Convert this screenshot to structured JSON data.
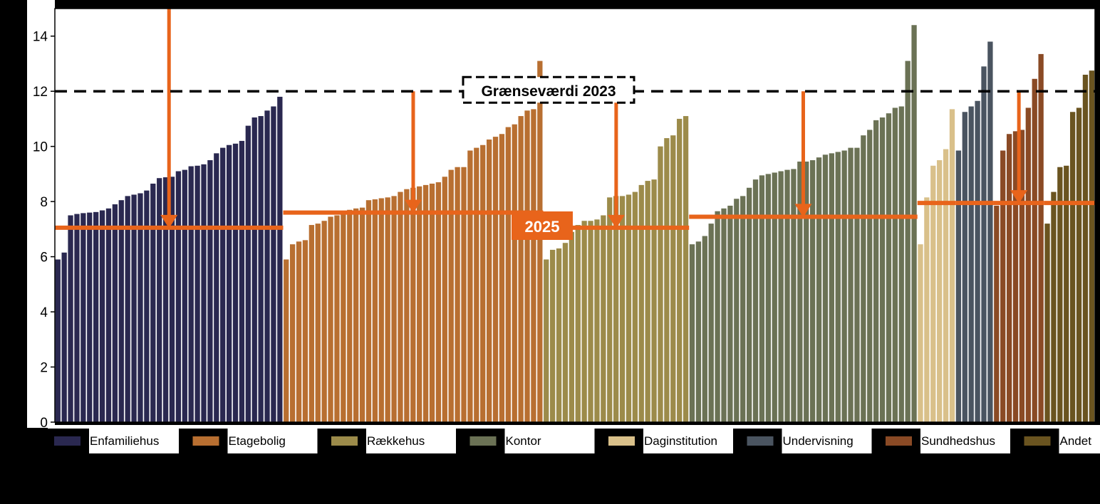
{
  "chart_data": {
    "type": "bar",
    "title": "",
    "xlabel": "",
    "ylabel": "",
    "ylim": [
      0,
      15
    ],
    "yticks": [
      0,
      2,
      4,
      6,
      8,
      10,
      12,
      14
    ],
    "grid": false,
    "legend_position": "bottom",
    "reference_line": {
      "label": "Grænseværdi 2023",
      "value": 12,
      "style": "dashed",
      "color": "#000000"
    },
    "target_label": "2025",
    "accent_color": "#E8641B",
    "series": [
      {
        "name": "Enfamiliehus",
        "color": "#2A2850",
        "target": 7.05,
        "values": [
          5.9,
          6.15,
          7.5,
          7.55,
          7.58,
          7.6,
          7.62,
          7.68,
          7.75,
          7.9,
          8.05,
          8.2,
          8.25,
          8.3,
          8.4,
          8.65,
          8.85,
          8.88,
          8.9,
          9.1,
          9.15,
          9.28,
          9.3,
          9.35,
          9.5,
          9.75,
          9.95,
          10.05,
          10.1,
          10.2,
          10.75,
          11.05,
          11.1,
          11.3,
          11.45,
          11.8
        ]
      },
      {
        "name": "Etagebolig",
        "color": "#B86F31",
        "target": 7.6,
        "values": [
          5.9,
          6.45,
          6.55,
          6.6,
          7.15,
          7.2,
          7.3,
          7.45,
          7.5,
          7.55,
          7.7,
          7.75,
          7.78,
          8.05,
          8.08,
          8.12,
          8.15,
          8.2,
          8.35,
          8.45,
          8.5,
          8.55,
          8.6,
          8.65,
          8.7,
          8.9,
          9.15,
          9.25,
          9.25,
          9.85,
          9.95,
          10.05,
          10.25,
          10.35,
          10.45,
          10.7,
          10.8,
          11.1,
          11.3,
          11.35,
          13.1
        ]
      },
      {
        "name": "Rækkehus",
        "color": "#9C8B4A",
        "target": 7.05,
        "values": [
          5.9,
          6.25,
          6.3,
          6.5,
          6.9,
          7.15,
          7.3,
          7.3,
          7.35,
          7.5,
          8.15,
          8.2,
          8.2,
          8.25,
          8.35,
          8.6,
          8.75,
          8.8,
          10.0,
          10.3,
          10.4,
          11.0,
          11.1
        ]
      },
      {
        "name": "Kontor",
        "color": "#6B7255",
        "target": 7.45,
        "values": [
          6.45,
          6.55,
          6.75,
          7.2,
          7.65,
          7.75,
          7.85,
          8.1,
          8.2,
          8.5,
          8.8,
          8.95,
          9.0,
          9.05,
          9.1,
          9.15,
          9.18,
          9.45,
          9.45,
          9.5,
          9.6,
          9.7,
          9.75,
          9.8,
          9.85,
          9.95,
          9.95,
          10.4,
          10.6,
          10.95,
          11.05,
          11.2,
          11.4,
          11.45,
          13.1,
          14.4
        ]
      },
      {
        "name": "Daginstitution",
        "color": "#D9C08A",
        "target": 7.95,
        "values": [
          6.45,
          8.15,
          9.3,
          9.5,
          9.9,
          11.35
        ]
      },
      {
        "name": "Undervisning",
        "color": "#4A5460",
        "target": 7.95,
        "values": [
          9.85,
          11.25,
          11.45,
          11.65,
          12.9,
          13.8
        ]
      },
      {
        "name": "Sundhedshus",
        "color": "#8A4A25",
        "target": 7.95,
        "values": [
          7.85,
          9.85,
          10.45,
          10.55,
          10.6,
          11.4,
          12.45,
          13.35
        ]
      },
      {
        "name": "Andet",
        "color": "#6A5420",
        "target": 7.95,
        "values": [
          7.2,
          8.35,
          9.25,
          9.3,
          11.25,
          11.4,
          12.6,
          12.75
        ]
      }
    ]
  }
}
